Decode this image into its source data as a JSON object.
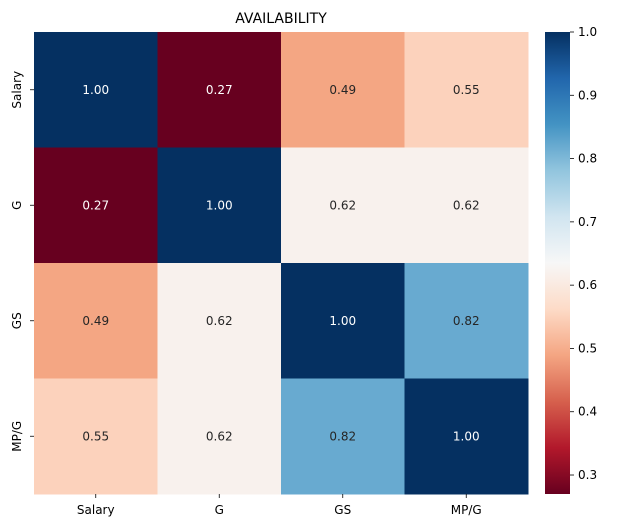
{
  "chart_data": {
    "type": "heatmap",
    "title": "AVAILABILITY",
    "row_labels": [
      "Salary",
      "G",
      "GS",
      "MP/G"
    ],
    "col_labels": [
      "Salary",
      "G",
      "GS",
      "MP/G"
    ],
    "values": [
      [
        1.0,
        0.27,
        0.49,
        0.55
      ],
      [
        0.27,
        1.0,
        0.62,
        0.62
      ],
      [
        0.49,
        0.62,
        1.0,
        0.82
      ],
      [
        0.55,
        0.62,
        0.82,
        1.0
      ]
    ],
    "value_format": "2 decimals",
    "colormap": "RdBu",
    "vmin": 0.27,
    "vmax": 1.0,
    "colorbar_ticks": [
      0.3,
      0.4,
      0.5,
      0.6,
      0.7,
      0.8,
      0.9,
      1.0
    ],
    "colorbar_tick_labels": [
      "0.3",
      "0.4",
      "0.5",
      "0.6",
      "0.7",
      "0.8",
      "0.9",
      "1.0"
    ],
    "annotation_colors": {
      "on_dark": "#ffffff",
      "on_light": "#262626"
    }
  }
}
